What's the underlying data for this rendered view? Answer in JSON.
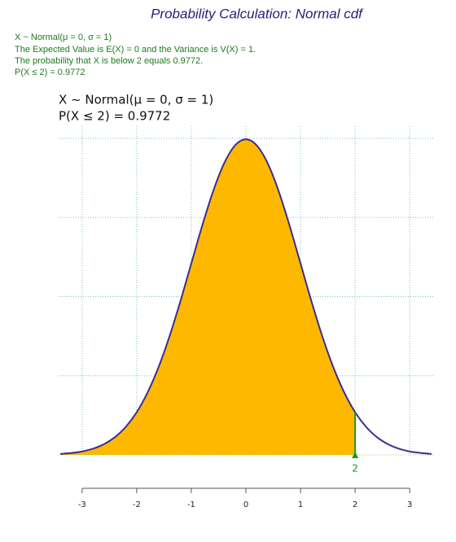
{
  "header": {
    "title": "Probability Calculation: Normal cdf",
    "lines": [
      "X ~ Normal(μ = 0, σ = 1)",
      "The Expected Value is E(X) = 0 and the Variance is V(X) = 1.",
      "The probability that X is below 2 equals 0.9772.",
      "P(X ≤ 2) = 0.9772"
    ]
  },
  "chart_data": {
    "type": "area",
    "title_lines": [
      "X ~ Normal(μ = 0, σ = 1)",
      "P(X ≤ 2) = 0.9772"
    ],
    "x": [
      -3.4,
      -3.2,
      -3.0,
      -2.8,
      -2.6,
      -2.4,
      -2.2,
      -2.0,
      -1.8,
      -1.6,
      -1.4,
      -1.2,
      -1.0,
      -0.8,
      -0.6,
      -0.4,
      -0.2,
      0,
      0.2,
      0.4,
      0.6,
      0.8,
      1.0,
      1.2,
      1.4,
      1.6,
      1.8,
      2.0,
      2.2,
      2.4,
      2.6,
      2.8,
      3.0,
      3.2,
      3.4
    ],
    "values": [
      0.0012,
      0.0024,
      0.0044,
      0.0079,
      0.0136,
      0.0224,
      0.0355,
      0.054,
      0.079,
      0.1109,
      0.1497,
      0.1942,
      0.242,
      0.2897,
      0.3332,
      0.3683,
      0.391,
      0.3989,
      0.391,
      0.3683,
      0.3332,
      0.2897,
      0.242,
      0.1942,
      0.1497,
      0.1109,
      0.079,
      0.054,
      0.0355,
      0.0224,
      0.0136,
      0.0079,
      0.0044,
      0.0024,
      0.0012
    ],
    "color": "#3b2d8f",
    "fill_color": "#ffb800",
    "marker_color": "#1a9a1a",
    "shade_to": 2,
    "xlim": [
      -3.43,
      3.43
    ],
    "ylim": [
      0,
      0.4
    ],
    "xticks": [
      -3,
      -2,
      -1,
      0,
      1,
      2,
      3
    ],
    "ygrid": [
      0,
      0.1,
      0.2,
      0.3,
      0.4
    ],
    "grid": true
  }
}
